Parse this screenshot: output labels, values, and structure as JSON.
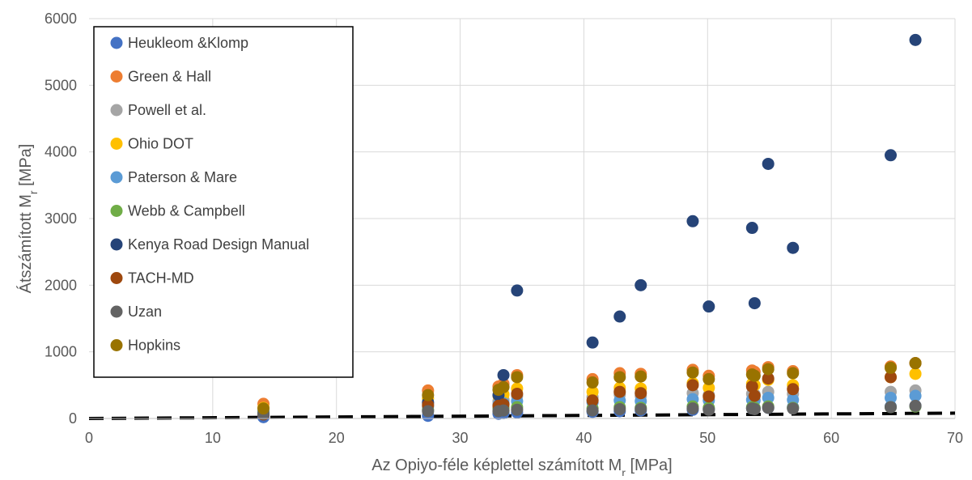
{
  "chart_data": {
    "type": "scatter",
    "xlabel_main": "Az Opiyo-féle képlettel számított M",
    "xlabel_sub": "r",
    "xlabel_tail": " [MPa]",
    "ylabel_main": "Átszámított M",
    "ylabel_sub": "r",
    "ylabel_tail": " [MPa]",
    "xlim": [
      0,
      70
    ],
    "ylim": [
      0,
      6000
    ],
    "x_ticks": [
      0,
      10,
      20,
      30,
      40,
      50,
      60,
      70
    ],
    "y_ticks": [
      0,
      1000,
      2000,
      3000,
      4000,
      5000,
      6000
    ],
    "grid": true,
    "legend_position": "top-left",
    "x": [
      14.1,
      27.4,
      33.1,
      33.5,
      34.6,
      40.7,
      42.9,
      44.6,
      48.8,
      50.1,
      53.6,
      53.8,
      54.9,
      56.9,
      64.8,
      66.8
    ],
    "series": [
      {
        "name": "Heukleom &Klomp",
        "color": "#4472C4",
        "values": [
          20,
          40,
          70,
          80,
          90,
          100,
          110,
          120,
          130,
          140,
          150,
          150,
          160,
          170,
          180,
          190
        ]
      },
      {
        "name": "Green & Hall",
        "color": "#ED7D31",
        "values": [
          220,
          420,
          480,
          520,
          650,
          590,
          680,
          670,
          730,
          640,
          720,
          700,
          770,
          710,
          780,
          830
        ]
      },
      {
        "name": "Powell et al.",
        "color": "#A5A5A5",
        "values": [
          100,
          220,
          260,
          280,
          340,
          320,
          360,
          340,
          380,
          350,
          370,
          360,
          400,
          370,
          400,
          420
        ]
      },
      {
        "name": "Ohio DOT",
        "color": "#FFC000",
        "values": [
          160,
          300,
          340,
          360,
          450,
          400,
          460,
          450,
          530,
          460,
          520,
          500,
          580,
          500,
          620,
          670
        ]
      },
      {
        "name": "Paterson & Mare",
        "color": "#5B9BD5",
        "values": [
          110,
          180,
          210,
          230,
          260,
          240,
          270,
          260,
          290,
          270,
          280,
          270,
          310,
          280,
          310,
          340
        ]
      },
      {
        "name": "Webb & Campbell",
        "color": "#70AD47",
        "values": [
          80,
          130,
          150,
          160,
          170,
          150,
          170,
          160,
          180,
          160,
          170,
          160,
          180,
          160,
          170,
          180
        ]
      },
      {
        "name": "Kenya Road Design Manual",
        "color": "#264478",
        "values": [
          60,
          240,
          350,
          650,
          1920,
          1140,
          1530,
          2000,
          2960,
          1680,
          2860,
          1730,
          3820,
          2560,
          3950,
          5680
        ]
      },
      {
        "name": "TACH-MD",
        "color": "#9E480E",
        "values": [
          60,
          200,
          190,
          210,
          370,
          270,
          400,
          380,
          500,
          330,
          480,
          340,
          600,
          440,
          620,
          830
        ]
      },
      {
        "name": "Uzan",
        "color": "#636363",
        "values": [
          70,
          110,
          110,
          120,
          130,
          120,
          140,
          140,
          150,
          130,
          150,
          140,
          160,
          150,
          170,
          190
        ]
      },
      {
        "name": "Hopkins",
        "color": "#997300",
        "values": [
          150,
          350,
          430,
          470,
          620,
          540,
          620,
          630,
          690,
          590,
          660,
          640,
          740,
          680,
          760,
          830
        ]
      }
    ],
    "trendline": {
      "style": "dashed",
      "color": "#000000",
      "x": [
        0,
        70
      ],
      "y": [
        0,
        80
      ]
    }
  }
}
